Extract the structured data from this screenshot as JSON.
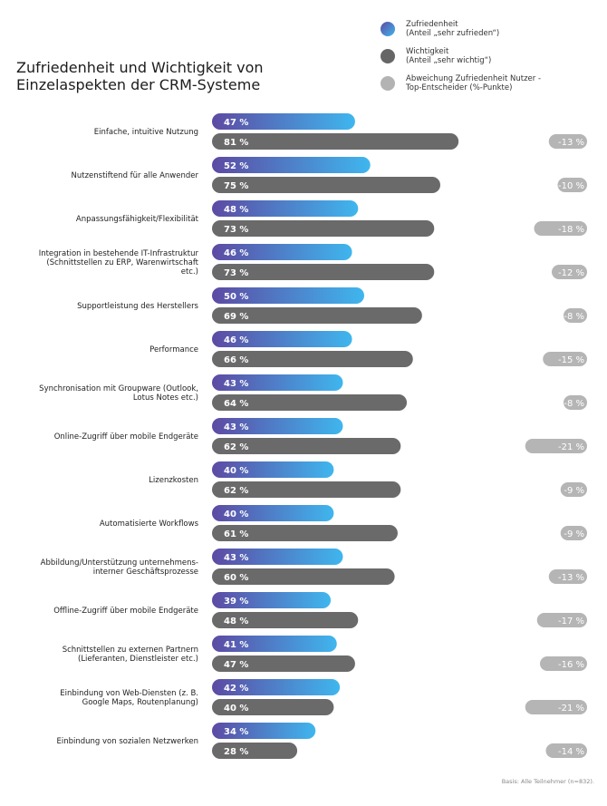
{
  "title_lines": [
    "Zufriedenheit und Wichtigkeit von",
    "Einzelaspekten der CRM-Systeme"
  ],
  "legend": [
    {
      "label": "Zufriedenheit\n(Anteil „sehr zufrieden“)",
      "color": "#4a9fe0"
    },
    {
      "label": "Wichtigkeit\n(Anteil „sehr wichtig“)",
      "color": "#666666"
    },
    {
      "label": "Abweichung Zufriedenheit Nutzer -\nTop-Entscheider (%-Punkte)",
      "color": "#b3b3b3"
    }
  ],
  "footnote": "Basis: Alle Teilnehmer (n=832).",
  "colors": {
    "zufriedenheit_start": "#5d4aa3",
    "zufriedenheit_end": "#3fb6ee",
    "wichtigkeit": "#6a6a6a",
    "abweichung": "#b5b5b5"
  },
  "chart_data": {
    "type": "bar",
    "orientation": "horizontal",
    "title": "Zufriedenheit und Wichtigkeit von Einzelaspekten der CRM-Systeme",
    "categories": [
      [
        "Einfache, intuitive Nutzung"
      ],
      [
        "Nutzenstiftend für alle Anwender"
      ],
      [
        "Anpassungsfähigkeit/Flexibilität"
      ],
      [
        "Integration in bestehende IT-Infrastruktur",
        "(Schnittstellen zu ERP, Warenwirtschaft",
        "etc.)"
      ],
      [
        "Supportleistung des Herstellers"
      ],
      [
        "Performance"
      ],
      [
        "Synchronisation mit Groupware (Outlook,",
        "Lotus Notes etc.)"
      ],
      [
        "Online-Zugriff über mobile Endgeräte"
      ],
      [
        "Lizenzkosten"
      ],
      [
        "Automatisierte Workflows"
      ],
      [
        "Abbildung/Unterstützung unternehmens-",
        "interner Geschäftsprozesse"
      ],
      [
        "Offline-Zugriff über mobile Endgeräte"
      ],
      [
        "Schnittstellen zu externen Partnern",
        "(Lieferanten, Dienstleister etc.)"
      ],
      [
        "Einbindung von Web-Diensten (z. B.",
        "Google Maps, Routenplanung)"
      ],
      [
        "Einbindung von sozialen Netzwerken"
      ]
    ],
    "series": [
      {
        "name": "Zufriedenheit (Anteil „sehr zufrieden“)",
        "values": [
          47,
          52,
          48,
          46,
          50,
          46,
          43,
          43,
          40,
          40,
          43,
          39,
          41,
          42,
          34
        ],
        "labels": [
          "47 %",
          "52 %",
          "48 %",
          "46 %",
          "50 %",
          "46 %",
          "43 %",
          "43 %",
          "40 %",
          "40 %",
          "43 %",
          "39 %",
          "41 %",
          "42 %",
          "34 %"
        ]
      },
      {
        "name": "Wichtigkeit (Anteil „sehr wichtig“)",
        "values": [
          81,
          75,
          73,
          73,
          69,
          66,
          64,
          62,
          62,
          61,
          60,
          48,
          47,
          40,
          28
        ],
        "labels": [
          "81 %",
          "75 %",
          "73 %",
          "73 %",
          "69 %",
          "66 %",
          "64 %",
          "62 %",
          "62 %",
          "61 %",
          "60 %",
          "48 %",
          "47 %",
          "40 %",
          "28 %"
        ]
      },
      {
        "name": "Abweichung Zufriedenheit Nutzer - Top-Entscheider (%-Punkte)",
        "values": [
          -13,
          -10,
          -18,
          -12,
          -8,
          -15,
          -8,
          -21,
          -9,
          -9,
          -13,
          -17,
          -16,
          -21,
          -14
        ],
        "labels": [
          "-13 %",
          "-10 %",
          "-18 %",
          "-12 %",
          "-8 %",
          "-15 %",
          "-8 %",
          "-21 %",
          "-9 %",
          "-9 %",
          "-13 %",
          "-17 %",
          "-16 %",
          "-21 %",
          "-14 %"
        ]
      }
    ],
    "xlim": [
      0,
      100
    ],
    "grid": false,
    "legend_position": "top-right"
  }
}
